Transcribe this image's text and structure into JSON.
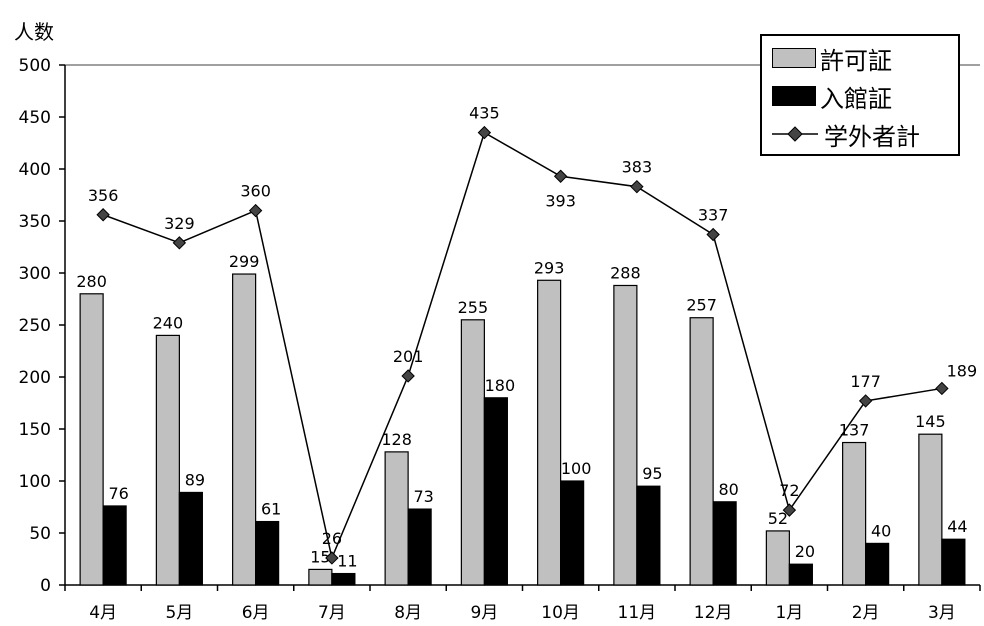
{
  "chart_data": {
    "type": "bar",
    "ylabel": "人数",
    "ylim": [
      0,
      500
    ],
    "yticks": [
      "0",
      "50",
      "100",
      "150",
      "200",
      "250",
      "300",
      "350",
      "400",
      "450",
      "500"
    ],
    "categories": [
      "4月",
      "5月",
      "6月",
      "7月",
      "8月",
      "9月",
      "10月",
      "11月",
      "12月",
      "1月",
      "2月",
      "3月"
    ],
    "series": [
      {
        "name": "許可証",
        "kind": "bar",
        "color": "#c0c0c0",
        "values": [
          280,
          240,
          299,
          15,
          128,
          255,
          293,
          288,
          257,
          52,
          137,
          145
        ]
      },
      {
        "name": "入館証",
        "kind": "bar",
        "color": "#000000",
        "values": [
          76,
          89,
          61,
          11,
          73,
          180,
          100,
          95,
          80,
          20,
          40,
          44
        ]
      },
      {
        "name": "学外者計",
        "kind": "line",
        "marker": "diamond",
        "color": "#000000",
        "values": [
          356,
          329,
          360,
          26,
          201,
          435,
          393,
          383,
          337,
          72,
          177,
          189
        ]
      }
    ],
    "gridlines": [
      500
    ],
    "legend": "top-right"
  }
}
